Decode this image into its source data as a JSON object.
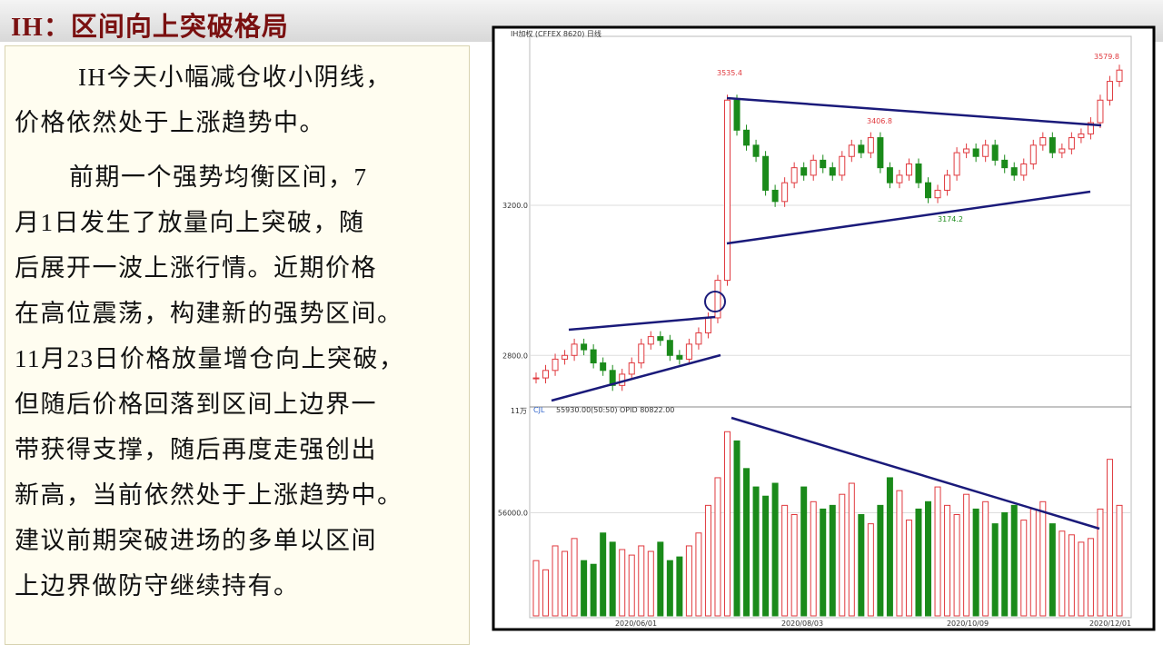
{
  "header": {
    "title": "IH：区间向上突破格局"
  },
  "body": {
    "paragraphs": [
      {
        "lines": [
          "IH今天小幅减仓收小阴线，",
          "价格依然处于上涨趋势中。"
        ]
      },
      {
        "lines": [
          "前期一个强势均衡区间，7",
          "月1日发生了放量向上突破，随",
          "后展开一波上涨行情。近期价格",
          "在高位震荡，构建新的强势区间。",
          "11月23日价格放量增仓向上突破，",
          "但随后价格回落到区间上边界一",
          "带获得支撑，随后再度走强创出",
          "新高，当前依然处于上涨趋势中。",
          "建议前期突破进场的多单以区间",
          "上边界做防守继续持有。"
        ]
      }
    ]
  },
  "chart_data": {
    "type": "candlestick",
    "header": "IH加权  (CFFEX 8620)  日线",
    "volume_header": "CJL",
    "volume_indicator": "55930.00(50:50)  OPID 80822.00",
    "volume_unit_label": "11万",
    "price_labels": [
      "3535.4",
      "3406.8",
      "3174.2",
      "3579.8"
    ],
    "x_labels": [
      "2020/06/01",
      "2020/08/03",
      "2020/10/09",
      "2020/12/01"
    ],
    "ylim": [
      2670,
      3650
    ],
    "yticks": [
      {
        "value": 3200,
        "label": "3200.0"
      },
      {
        "value": 2800,
        "label": "2800.0"
      }
    ],
    "y2lim": [
      0,
      110000
    ],
    "y2ticks": [
      {
        "value": 56000,
        "label": "56000.0"
      }
    ],
    "up_color": "#e0393e",
    "down_color": "#1a8a1a",
    "close": [
      2740,
      2760,
      2790,
      2800,
      2830,
      2815,
      2780,
      2760,
      2720,
      2750,
      2780,
      2830,
      2850,
      2840,
      2800,
      2790,
      2830,
      2860,
      2900,
      3000,
      3480,
      3400,
      3360,
      3330,
      3240,
      3210,
      3260,
      3300,
      3280,
      3320,
      3300,
      3280,
      3330,
      3360,
      3340,
      3380,
      3300,
      3260,
      3280,
      3310,
      3260,
      3220,
      3240,
      3280,
      3340,
      3350,
      3330,
      3360,
      3320,
      3300,
      3280,
      3310,
      3360,
      3380,
      3340,
      3350,
      3380,
      3390,
      3420,
      3480,
      3530,
      3560
    ],
    "volume": [
      30000,
      25000,
      38000,
      35000,
      42000,
      30000,
      28000,
      45000,
      40000,
      36000,
      33000,
      38000,
      35000,
      40000,
      30000,
      32000,
      38000,
      45000,
      60000,
      75000,
      100000,
      95000,
      80000,
      70000,
      65000,
      72000,
      60000,
      55000,
      70000,
      62000,
      58000,
      60000,
      66000,
      72000,
      55000,
      50000,
      60000,
      75000,
      68000,
      52000,
      58000,
      62000,
      70000,
      60000,
      55000,
      66000,
      58000,
      62000,
      50000,
      56000,
      60000,
      52000,
      58000,
      62000,
      50000,
      46000,
      44000,
      40000,
      42000,
      58000,
      85000,
      60000
    ]
  }
}
